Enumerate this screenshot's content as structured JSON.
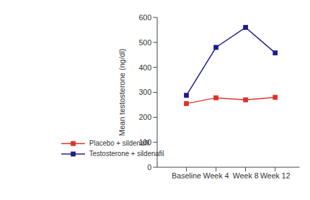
{
  "chart_data": {
    "type": "line",
    "categories": [
      "Baseline",
      "Week 4",
      "Week 8",
      "Week 12"
    ],
    "y_label": "Mean testosterone (ng/dl)",
    "ylim": [
      0,
      600
    ],
    "yticks": [
      0,
      100,
      200,
      300,
      400,
      500,
      600
    ],
    "grid": false,
    "legend": "lower left",
    "marker": "square",
    "series": [
      {
        "name": "Placebo + sildenafil",
        "color": "#e0302a",
        "values": [
          255,
          278,
          270,
          280
        ]
      },
      {
        "name": "Testosterone + sildenafil",
        "color": "#1c1c8e",
        "values": [
          288,
          480,
          560,
          458
        ]
      }
    ]
  }
}
